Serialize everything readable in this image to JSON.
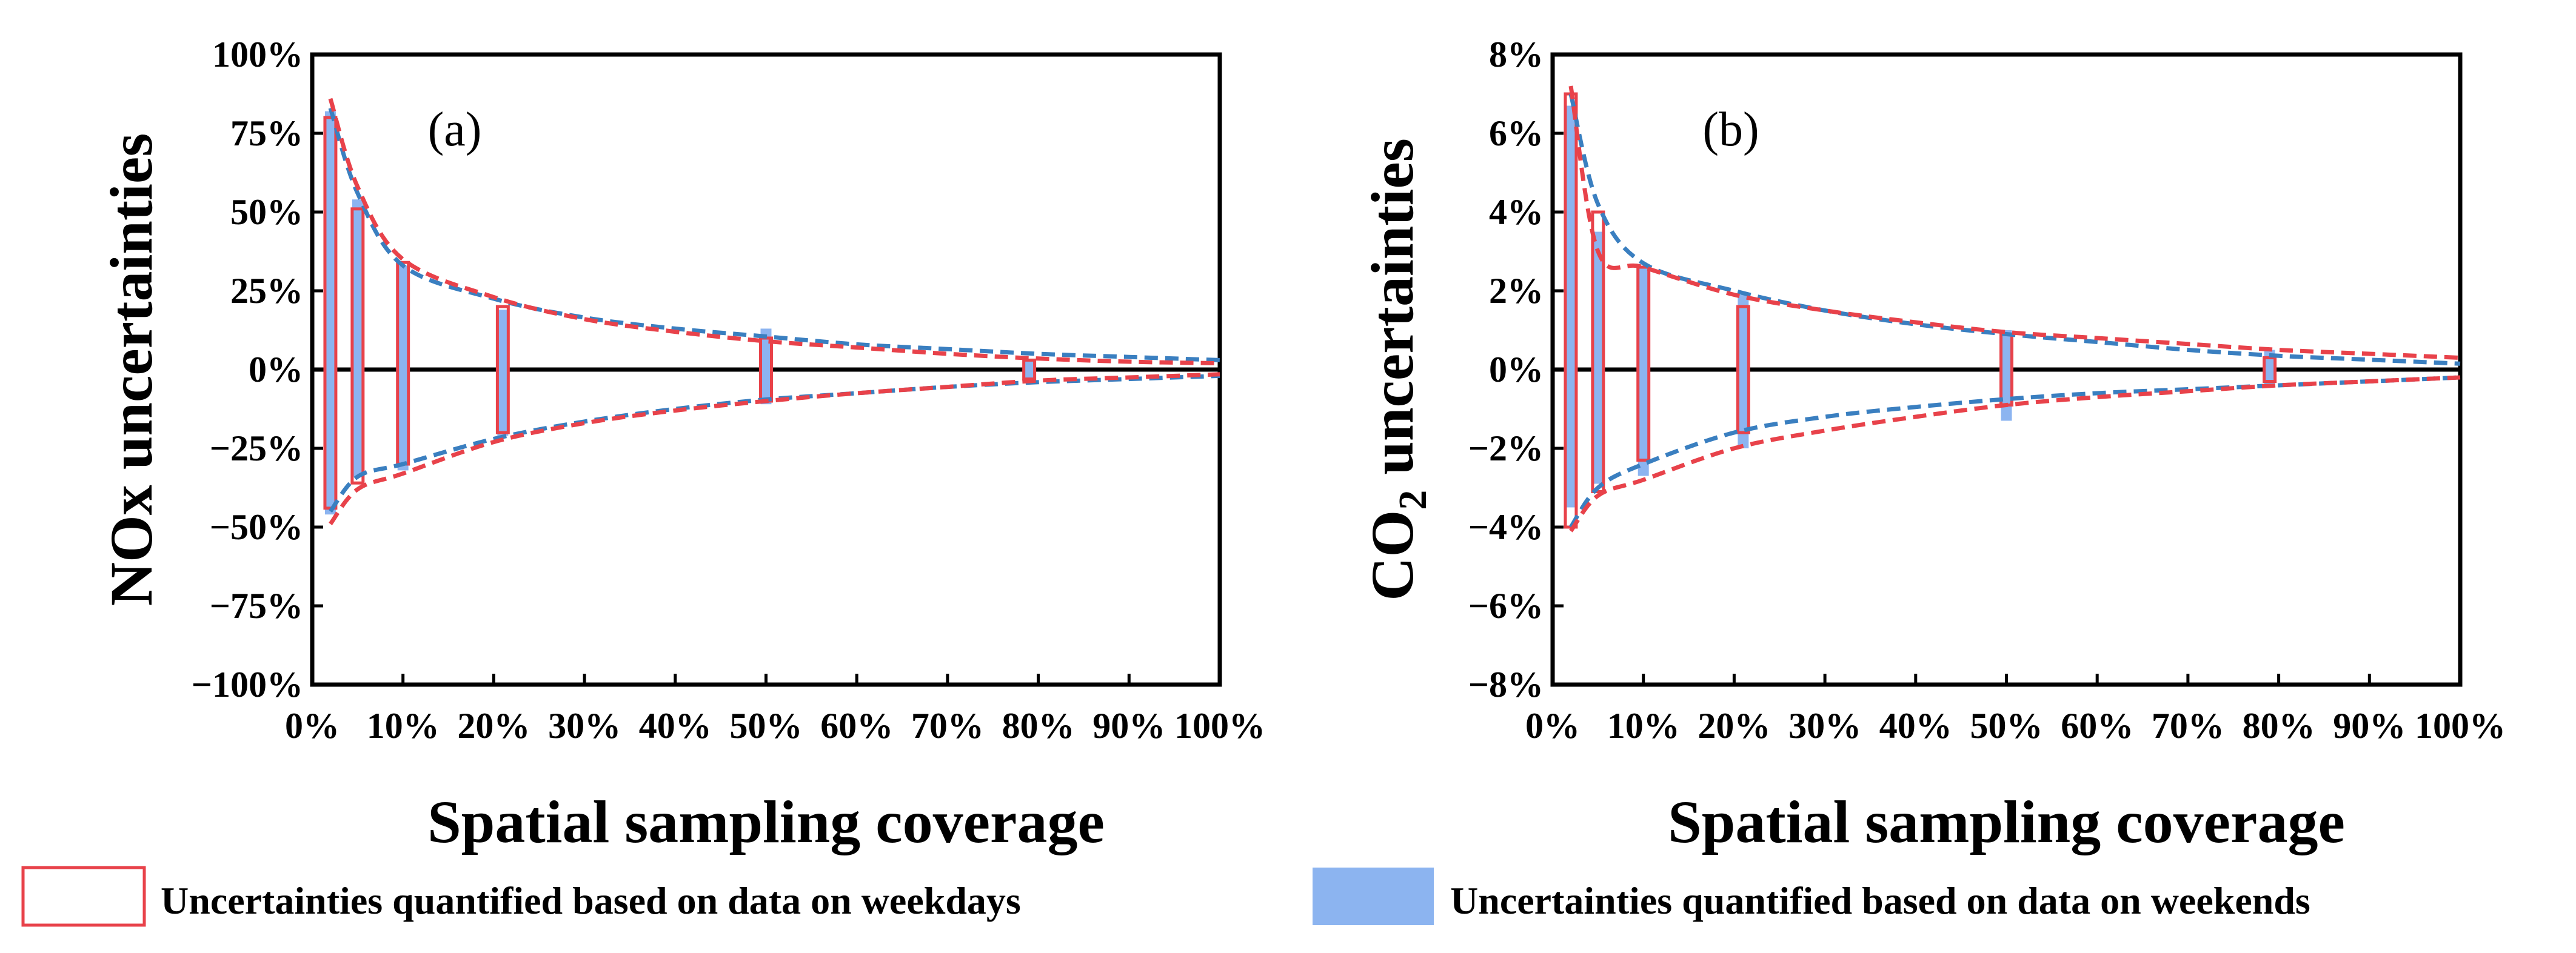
{
  "chart_data": [
    {
      "type": "floating_bar_with_envelope",
      "panel_label": "(a)",
      "title": "",
      "xlabel": "Spatial sampling coverage",
      "ylabel": "NOx uncertainties",
      "ylabel_parts": {
        "main": "NOx uncertainties",
        "sub": "",
        "tail": ""
      },
      "xlim": [
        0,
        100
      ],
      "ylim": [
        -100,
        100
      ],
      "xticks": [
        0,
        10,
        20,
        30,
        40,
        50,
        60,
        70,
        80,
        90,
        100
      ],
      "xtick_labels": [
        "0%",
        "10%",
        "20%",
        "30%",
        "40%",
        "50%",
        "60%",
        "70%",
        "80%",
        "90%",
        "100%"
      ],
      "yticks": [
        100,
        75,
        50,
        25,
        0,
        -25,
        -50,
        -75,
        -100
      ],
      "ytick_labels": [
        "100%",
        "75%",
        "50%",
        "25%",
        "0%",
        "−25%",
        "−50%",
        "−75%",
        "−100%"
      ],
      "bar_width": 1.2,
      "weekday_bars": [
        {
          "x": 2,
          "high": 80,
          "low": -44
        },
        {
          "x": 5,
          "high": 51,
          "low": -36
        },
        {
          "x": 10,
          "high": 34,
          "low": -30
        },
        {
          "x": 21,
          "high": 20,
          "low": -20
        },
        {
          "x": 50,
          "high": 10,
          "low": -10
        },
        {
          "x": 79,
          "high": 3,
          "low": -3
        }
      ],
      "weekend_bars": [
        {
          "x": 2,
          "high": 82,
          "low": -46
        },
        {
          "x": 5,
          "high": 54,
          "low": -34
        },
        {
          "x": 10,
          "high": 33,
          "low": -32
        },
        {
          "x": 21,
          "high": 19,
          "low": -21
        },
        {
          "x": 50,
          "high": 13,
          "low": -11
        },
        {
          "x": 79,
          "high": 3,
          "low": -3
        }
      ],
      "weekday_curve_upper": [
        [
          2,
          86
        ],
        [
          5,
          58
        ],
        [
          10,
          35
        ],
        [
          20,
          23
        ],
        [
          30,
          16
        ],
        [
          40,
          12
        ],
        [
          50,
          9
        ],
        [
          60,
          7
        ],
        [
          70,
          5
        ],
        [
          80,
          3.5
        ],
        [
          90,
          2.5
        ],
        [
          100,
          2
        ]
      ],
      "weekday_curve_lower": [
        [
          2,
          -49
        ],
        [
          5,
          -38
        ],
        [
          10,
          -33
        ],
        [
          20,
          -23
        ],
        [
          30,
          -17
        ],
        [
          40,
          -13
        ],
        [
          50,
          -10
        ],
        [
          60,
          -7.5
        ],
        [
          70,
          -5.5
        ],
        [
          80,
          -3.5
        ],
        [
          90,
          -2.5
        ],
        [
          100,
          -1.5
        ]
      ],
      "weekend_curve_upper": [
        [
          2,
          83
        ],
        [
          5,
          56
        ],
        [
          10,
          33
        ],
        [
          20,
          22.5
        ],
        [
          30,
          16.5
        ],
        [
          40,
          13
        ],
        [
          50,
          10.5
        ],
        [
          60,
          8
        ],
        [
          70,
          6.5
        ],
        [
          80,
          5
        ],
        [
          90,
          4
        ],
        [
          100,
          3
        ]
      ],
      "weekend_curve_lower": [
        [
          2,
          -45
        ],
        [
          5,
          -34
        ],
        [
          10,
          -30
        ],
        [
          20,
          -22
        ],
        [
          30,
          -16.5
        ],
        [
          40,
          -12.5
        ],
        [
          50,
          -9.5
        ],
        [
          60,
          -7.5
        ],
        [
          70,
          -5.5
        ],
        [
          80,
          -4
        ],
        [
          90,
          -3
        ],
        [
          100,
          -2
        ]
      ]
    },
    {
      "type": "floating_bar_with_envelope",
      "panel_label": "(b)",
      "title": "",
      "xlabel": "Spatial sampling coverage",
      "ylabel": "CO2 uncertainties",
      "ylabel_parts": {
        "main": "CO",
        "sub": "2",
        "tail": " uncertainties"
      },
      "xlim": [
        0,
        100
      ],
      "ylim": [
        -8,
        8
      ],
      "xticks": [
        0,
        10,
        20,
        30,
        40,
        50,
        60,
        70,
        80,
        90,
        100
      ],
      "xtick_labels": [
        "0%",
        "10%",
        "20%",
        "30%",
        "40%",
        "50%",
        "60%",
        "70%",
        "80%",
        "90%",
        "100%"
      ],
      "yticks": [
        8,
        6,
        4,
        2,
        0,
        -2,
        -4,
        -6,
        -8
      ],
      "ytick_labels": [
        "8%",
        "6%",
        "4%",
        "2%",
        "0%",
        "−2%",
        "−4%",
        "−6%",
        "−8%"
      ],
      "bar_width": 1.2,
      "weekday_bars": [
        {
          "x": 2,
          "high": 7.0,
          "low": -4.0
        },
        {
          "x": 5,
          "high": 4.0,
          "low": -3.1
        },
        {
          "x": 10,
          "high": 2.6,
          "low": -2.3
        },
        {
          "x": 21,
          "high": 1.6,
          "low": -1.6
        },
        {
          "x": 50,
          "high": 0.9,
          "low": -0.9
        },
        {
          "x": 79,
          "high": 0.3,
          "low": -0.3
        }
      ],
      "weekend_bars": [
        {
          "x": 2,
          "high": 6.7,
          "low": -3.5
        },
        {
          "x": 5,
          "high": 3.5,
          "low": -2.9
        },
        {
          "x": 10,
          "high": 2.6,
          "low": -2.7
        },
        {
          "x": 21,
          "high": 1.9,
          "low": -2.0
        },
        {
          "x": 50,
          "high": 1.0,
          "low": -1.3
        },
        {
          "x": 79,
          "high": 0.5,
          "low": -0.4
        }
      ],
      "weekday_curve_upper": [
        [
          2,
          7.2
        ],
        [
          5,
          3.0
        ],
        [
          10,
          2.6
        ],
        [
          20,
          1.9
        ],
        [
          30,
          1.5
        ],
        [
          40,
          1.2
        ],
        [
          50,
          0.95
        ],
        [
          60,
          0.8
        ],
        [
          70,
          0.65
        ],
        [
          80,
          0.5
        ],
        [
          90,
          0.4
        ],
        [
          100,
          0.3
        ]
      ],
      "weekday_curve_lower": [
        [
          2,
          -4.1
        ],
        [
          5,
          -3.2
        ],
        [
          10,
          -2.8
        ],
        [
          20,
          -2.0
        ],
        [
          30,
          -1.55
        ],
        [
          40,
          -1.2
        ],
        [
          50,
          -0.9
        ],
        [
          60,
          -0.7
        ],
        [
          70,
          -0.55
        ],
        [
          80,
          -0.4
        ],
        [
          90,
          -0.3
        ],
        [
          100,
          -0.2
        ]
      ],
      "weekend_curve_upper": [
        [
          2,
          7.0
        ],
        [
          5,
          4.2
        ],
        [
          10,
          2.7
        ],
        [
          20,
          2.0
        ],
        [
          30,
          1.5
        ],
        [
          40,
          1.15
        ],
        [
          50,
          0.9
        ],
        [
          60,
          0.7
        ],
        [
          70,
          0.5
        ],
        [
          80,
          0.35
        ],
        [
          90,
          0.25
        ],
        [
          100,
          0.15
        ]
      ],
      "weekend_curve_lower": [
        [
          2,
          -4.0
        ],
        [
          5,
          -3.0
        ],
        [
          10,
          -2.4
        ],
        [
          20,
          -1.6
        ],
        [
          30,
          -1.2
        ],
        [
          40,
          -0.95
        ],
        [
          50,
          -0.75
        ],
        [
          60,
          -0.6
        ],
        [
          70,
          -0.5
        ],
        [
          80,
          -0.4
        ],
        [
          90,
          -0.3
        ],
        [
          100,
          -0.2
        ]
      ]
    }
  ],
  "legend": {
    "weekday_label": "Uncertainties quantified based on data on weekdays",
    "weekend_label": "Uncertainties quantified based on data on weekends"
  },
  "colors": {
    "weekday": "#e8424a",
    "weekend_fill": "#8cb4f0",
    "weekend_line": "#3a7fc0",
    "axis": "#000000"
  }
}
